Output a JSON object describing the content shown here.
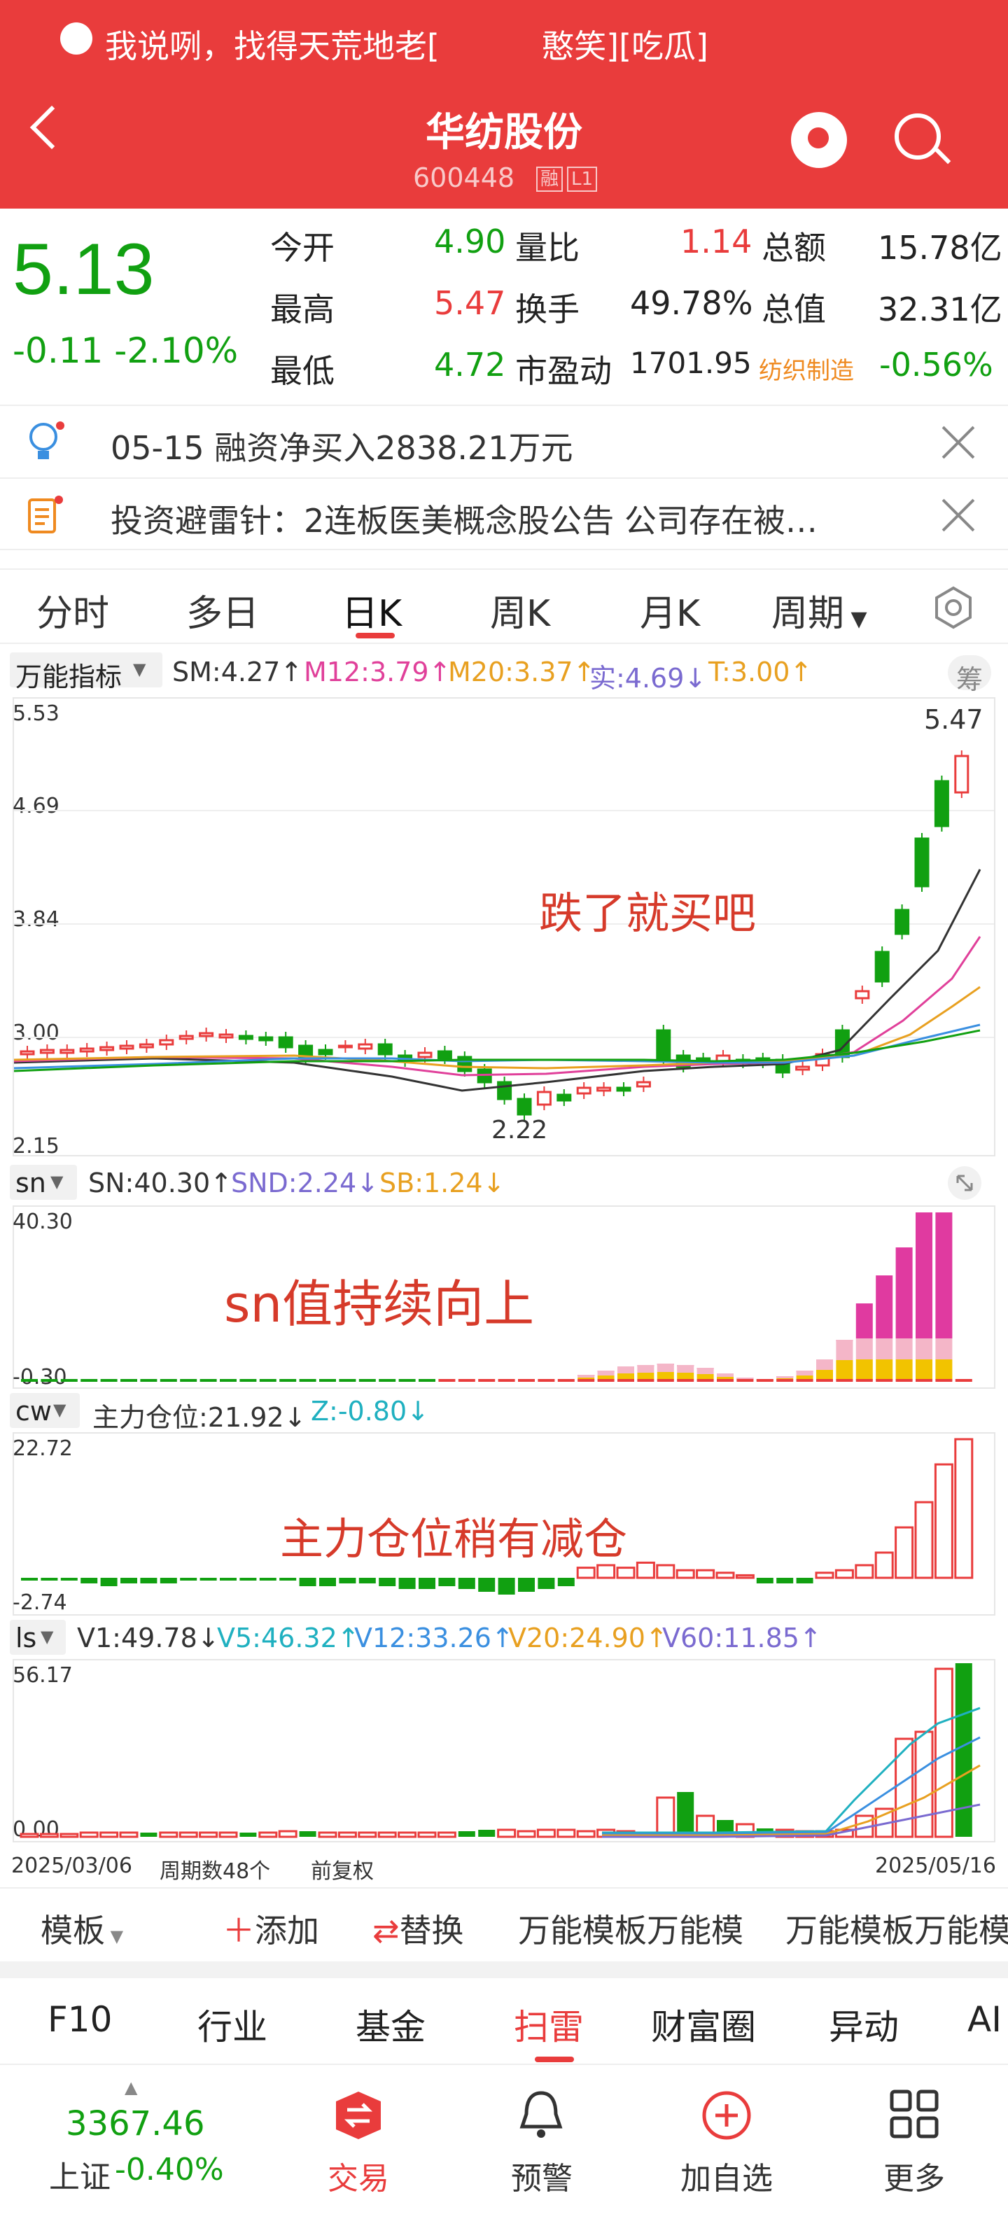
{
  "notice": {
    "text": "我说咧，找得天荒地老[          憨笑][吃瓜]"
  },
  "header": {
    "title": "华纺股份",
    "code": "600448",
    "badge1": "融",
    "badge2": "L1"
  },
  "quote": {
    "price": "5.13",
    "change": "-0.11",
    "change_pct": "-2.10%",
    "rows": [
      {
        "l1": "今开",
        "v1": "4.90",
        "l2": "量比",
        "v2": "1.14",
        "l3": "总额",
        "v3": "15.78亿"
      },
      {
        "l1": "最高",
        "v1": "5.47",
        "l2": "换手",
        "v2": "49.78%",
        "l3": "总值",
        "v3": "32.31亿"
      },
      {
        "l1": "最低",
        "v1": "4.72",
        "l2": "市盈动",
        "v2": "1701.95",
        "l3": "纺织制造",
        "v3": "-0.56%"
      }
    ]
  },
  "infos": [
    {
      "text": "05-15 融资净买入2838.21万元"
    },
    {
      "text": "投资避雷针：2连板医美概念股公告 公司存在被…"
    }
  ],
  "tabs": [
    "分时",
    "多日",
    "日K",
    "周K",
    "月K",
    "周期"
  ],
  "kline": {
    "indicator": "万能指标",
    "legend": [
      "SM:4.27↑",
      "M12:3.79↑",
      "M20:3.37↑",
      "实:4.69↓",
      "T:3.00↑"
    ],
    "chip": "筹",
    "ticks": [
      "5.53",
      "4.69",
      "3.84",
      "3.00",
      "2.15"
    ],
    "high_label": "5.47",
    "low_label": "2.22",
    "annotation": "跌了就买吧"
  },
  "sn": {
    "name": "sn",
    "legend": [
      "SN:40.30↑",
      "SND:2.24↓",
      "SB:1.24↓"
    ],
    "ticks": [
      "40.30",
      "-0.30"
    ],
    "annotation": "sn值持续向上"
  },
  "cw": {
    "name": "cw",
    "legend": [
      "主力仓位:21.92↓",
      "Z:-0.80↓"
    ],
    "ticks": [
      "22.72",
      "-2.74"
    ],
    "annotation": "主力仓位稍有减仓"
  },
  "ls": {
    "name": "ls",
    "legend": [
      "V1:49.78↓",
      "V5:46.32↑",
      "V12:33.26↑",
      "V20:24.90↑",
      "V60:11.85↑"
    ],
    "ticks": [
      "56.17",
      "0.00"
    ],
    "date_start": "2025/03/06",
    "period_count": "周期数48个",
    "fq": "前复权",
    "date_end": "2025/05/16"
  },
  "toolbar": {
    "template": "模板",
    "add": "添加",
    "replace": "替换",
    "t1": "万能模板万能模",
    "t2": "万能模板万能模"
  },
  "bottom_tabs": [
    "F10",
    "行业",
    "基金",
    "扫雷",
    "财富圈",
    "异动",
    "AI"
  ],
  "nav": {
    "index_value": "3367.46",
    "index_name": "上证",
    "index_chg": "-0.40%",
    "trade": "交易",
    "alert": "预警",
    "add": "加自选",
    "more": "更多"
  },
  "colors": {
    "up": "#e93c3c",
    "down": "#11a011",
    "brand": "#e93c3c"
  }
}
